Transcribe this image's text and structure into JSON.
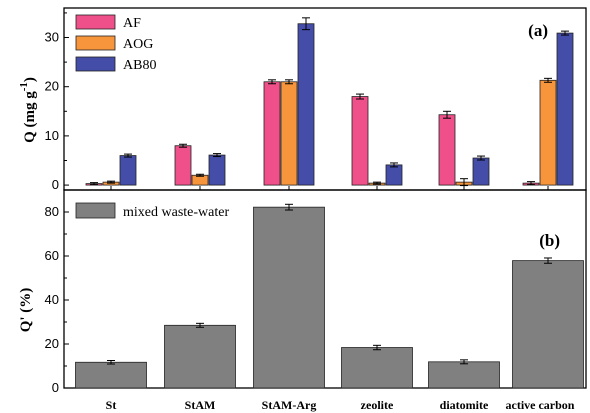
{
  "chart_data": [
    {
      "type": "bar",
      "panel_label": "(a)",
      "categories": [
        "St",
        "StAM",
        "StAM-Arg",
        "zeolite",
        "diatomite",
        "active carbon"
      ],
      "ylabel_main": "Q (mg g",
      "ylabel_sup": "-1",
      "ylabel_close": ")",
      "ylim": [
        -1,
        36
      ],
      "yticks": [
        0,
        10,
        20,
        30
      ],
      "legend_position": "top-left",
      "series": [
        {
          "name": "AF",
          "color": "#f0508a",
          "values": [
            0.3,
            8.0,
            21.0,
            18.0,
            14.3,
            0.4
          ],
          "errors": [
            0.2,
            0.3,
            0.4,
            0.5,
            0.7,
            0.3
          ]
        },
        {
          "name": "AOG",
          "color": "#f7953c",
          "values": [
            0.6,
            2.0,
            21.0,
            0.4,
            0.6,
            21.3
          ],
          "errors": [
            0.2,
            0.2,
            0.4,
            0.2,
            0.7,
            0.4
          ]
        },
        {
          "name": "AB80",
          "color": "#444da8",
          "values": [
            6.0,
            6.1,
            32.8,
            4.1,
            5.5,
            30.9
          ],
          "errors": [
            0.3,
            0.3,
            1.2,
            0.4,
            0.4,
            0.4
          ]
        }
      ]
    },
    {
      "type": "bar",
      "panel_label": "(b)",
      "categories": [
        "St",
        "StAM",
        "StAM-Arg",
        "zeolite",
        "diatomite",
        "active carbon"
      ],
      "ylabel": "Q' (%)",
      "ylim": [
        0,
        90
      ],
      "yticks": [
        0,
        20,
        40,
        60,
        80
      ],
      "legend_position": "top-left",
      "series": [
        {
          "name": "mixed waste-water",
          "color": "#808080",
          "values": [
            11.7,
            28.5,
            82.2,
            18.4,
            11.9,
            57.9
          ],
          "errors": [
            0.8,
            0.9,
            1.3,
            1.0,
            0.9,
            1.2
          ]
        }
      ]
    }
  ]
}
